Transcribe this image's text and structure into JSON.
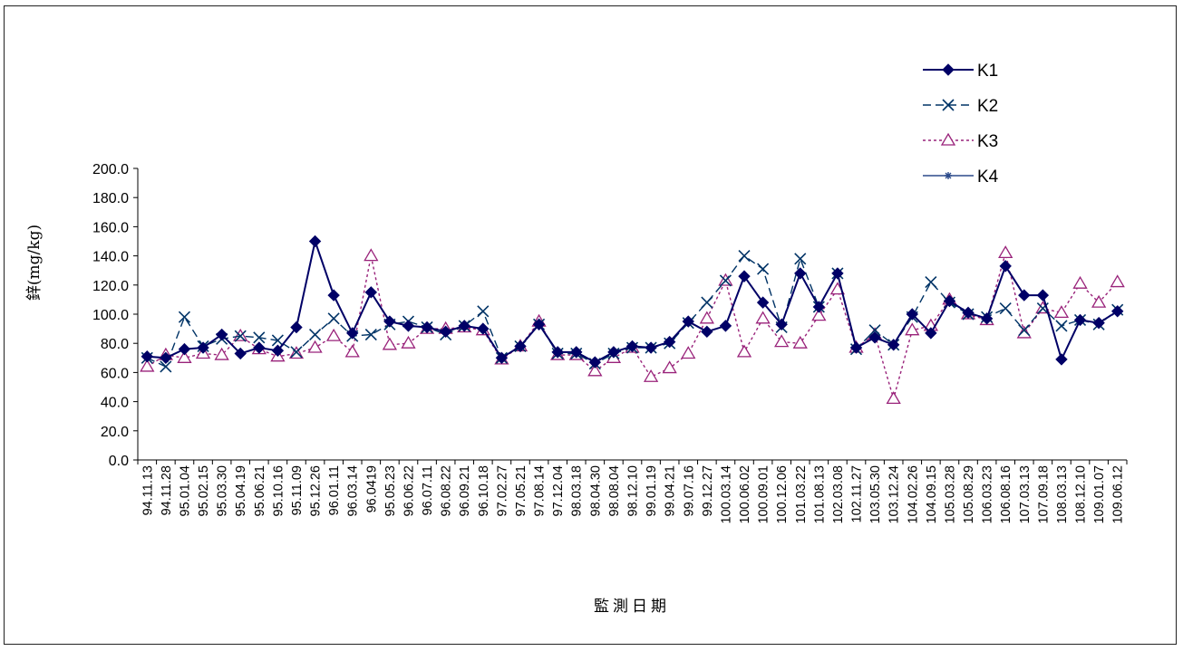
{
  "chart_data": {
    "type": "line",
    "title": "",
    "xlabel": "監測日期",
    "ylabel": "鋅(mg/kg)",
    "ylim": [
      0,
      200
    ],
    "yticks": [
      "0.0",
      "20.0",
      "40.0",
      "60.0",
      "80.0",
      "100.0",
      "120.0",
      "140.0",
      "160.0",
      "180.0",
      "200.0"
    ],
    "grid": false,
    "legend_position": "top-right",
    "categories": [
      "94.11.13",
      "94.11.28",
      "95.01.04",
      "95.02.15",
      "95.03.30",
      "95.04.19",
      "95.06.21",
      "95.10.16",
      "95.11.09",
      "95.12.26",
      "96.01.11",
      "96.03.14",
      "96.0419",
      "95.05.23",
      "96.06.22",
      "96.07.11",
      "96.08.22",
      "96.09.21",
      "96.10.18",
      "97.02.27",
      "97.05.21",
      "97.08.14",
      "97.12.04",
      "98.03.18",
      "98.04.30",
      "98.08.04",
      "98.12.10",
      "99.01.19",
      "99.04.21",
      "99.07.16",
      "99.12.27",
      "100.03.14",
      "100.06.02",
      "100.09.01",
      "100.12.06",
      "101.03.22",
      "101.08.13",
      "102.03.08",
      "102.11.27",
      "103.05.30",
      "103.12.24",
      "104.02.26",
      "104.09.15",
      "105.03.28",
      "105.08.29",
      "106.03.23",
      "106.08.16",
      "107.03.13",
      "107.09.18",
      "108.03.13",
      "108.12.10",
      "109.01.07",
      "109.06.12"
    ],
    "series": [
      {
        "name": "K1",
        "color": "#000066",
        "dash": "",
        "marker": "diamond",
        "values": [
          71,
          70,
          76,
          77,
          86,
          73,
          77,
          75,
          91,
          150,
          113,
          87,
          115,
          95,
          92,
          91,
          88,
          92,
          90,
          70,
          78,
          93,
          74,
          74,
          67,
          74,
          78,
          77,
          81,
          95,
          88,
          92,
          126,
          108,
          93,
          128,
          105,
          128,
          77,
          84,
          79,
          100,
          87,
          109,
          101,
          97,
          133,
          113,
          113,
          69,
          96,
          94,
          102
        ]
      },
      {
        "name": "K2",
        "color": "#003366",
        "dash": "9,5",
        "marker": "x",
        "values": [
          70,
          64,
          98,
          78,
          83,
          85,
          84,
          82,
          74,
          86,
          97,
          85,
          86,
          93,
          95,
          91,
          86,
          92,
          102,
          70,
          78,
          93,
          73,
          73,
          66,
          73,
          77,
          77,
          80,
          94,
          108,
          123,
          140,
          131,
          91,
          138,
          105,
          128,
          76,
          89,
          79,
          98,
          122,
          108,
          100,
          98,
          104,
          89,
          104,
          92,
          96,
          93,
          103
        ]
      },
      {
        "name": "K3",
        "color": "#99227a",
        "dash": "3,3",
        "marker": "triangle",
        "values": [
          64,
          72,
          70,
          73,
          72,
          85,
          76,
          71,
          73,
          77,
          85,
          74,
          140,
          79,
          80,
          90,
          90,
          91,
          89,
          69,
          78,
          95,
          72,
          72,
          61,
          70,
          77,
          57,
          63,
          73,
          97,
          123,
          74,
          97,
          81,
          80,
          99,
          117,
          77,
          86,
          42,
          89,
          92,
          110,
          100,
          96,
          142,
          87,
          104,
          101,
          121,
          108,
          122
        ]
      },
      {
        "name": "K4",
        "color": "#2b4a8a",
        "dash": "",
        "marker": "star",
        "values": [
          71,
          70,
          76,
          77,
          86,
          73,
          77,
          75,
          91,
          150,
          113,
          87,
          115,
          95,
          92,
          91,
          88,
          92,
          90,
          70,
          78,
          93,
          74,
          74,
          67,
          74,
          78,
          77,
          81,
          95,
          88,
          92,
          126,
          108,
          93,
          128,
          105,
          128,
          77,
          84,
          79,
          100,
          87,
          109,
          101,
          97,
          133,
          113,
          113,
          69,
          96,
          94,
          102
        ]
      }
    ]
  }
}
